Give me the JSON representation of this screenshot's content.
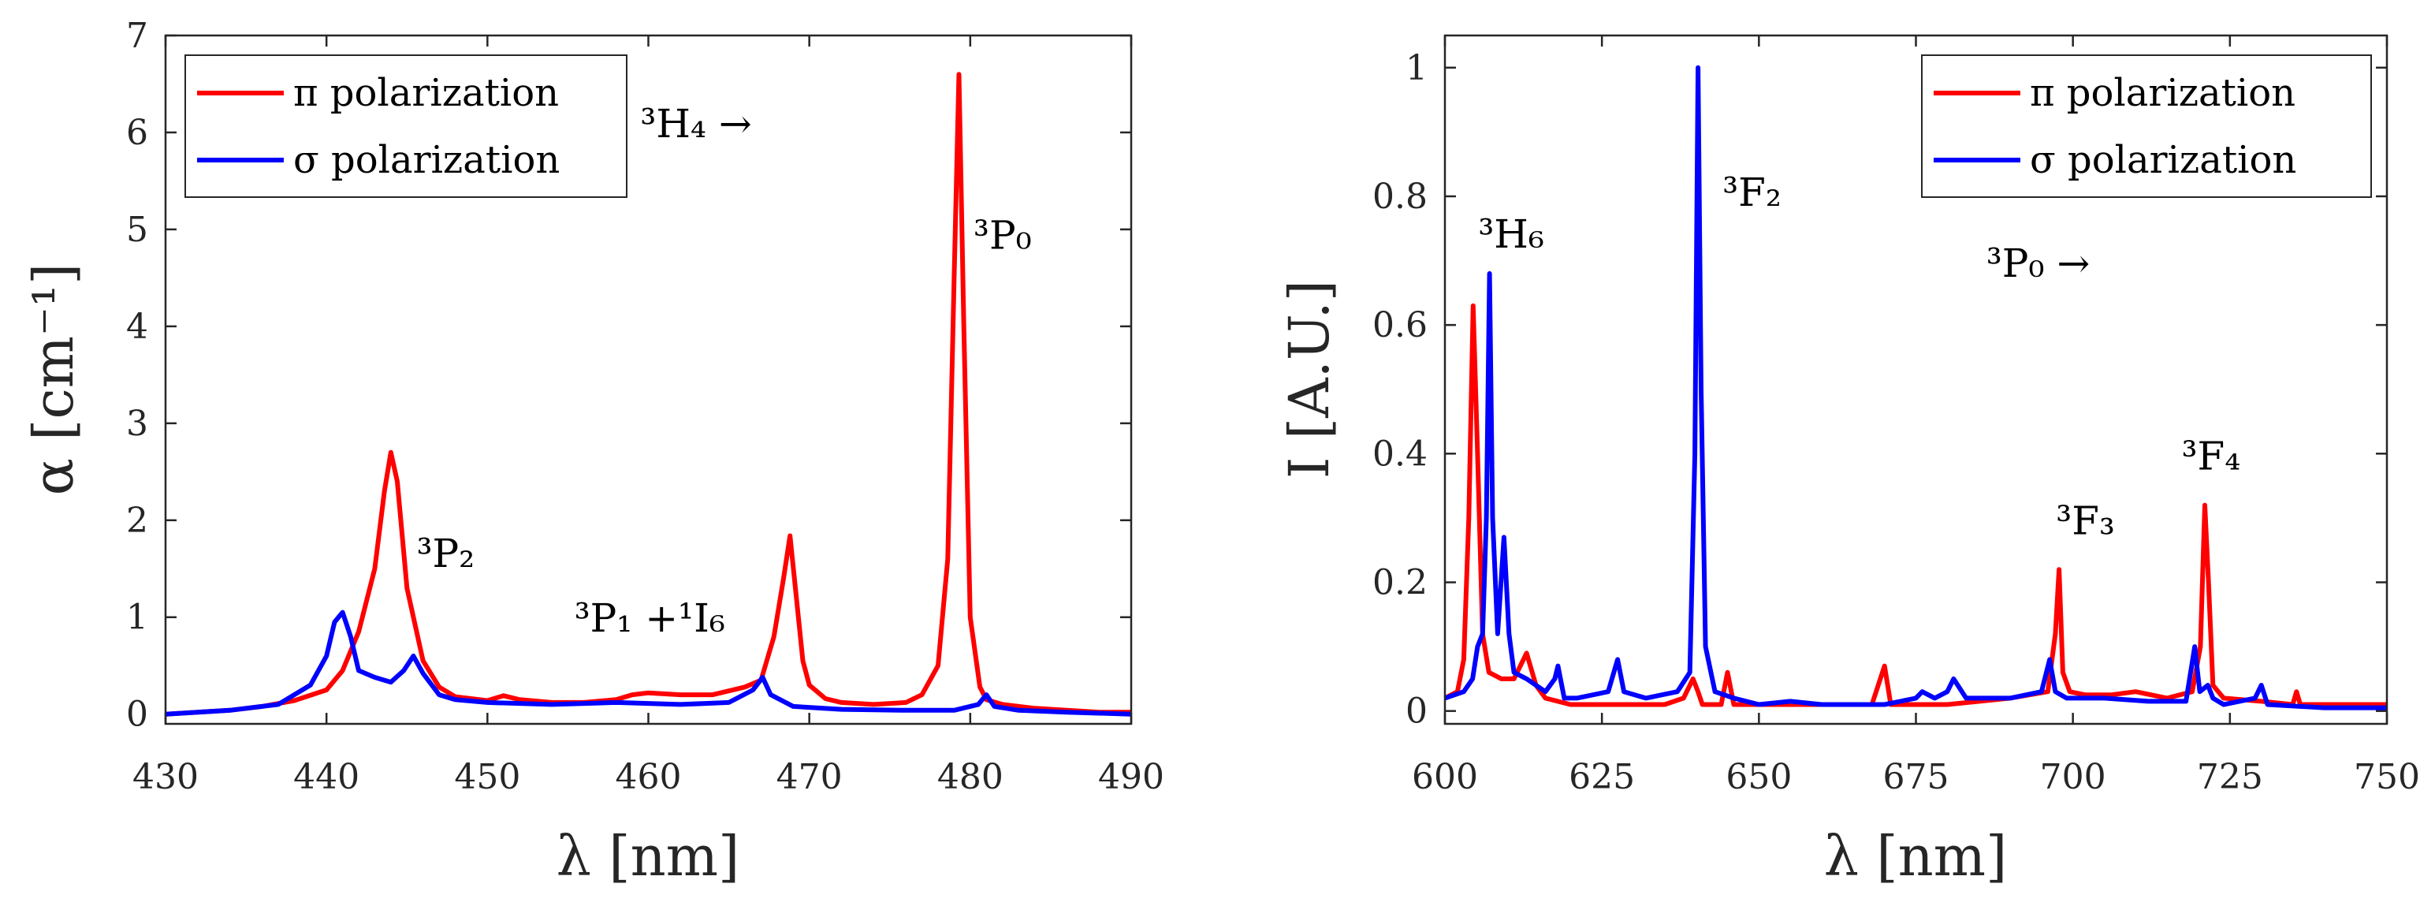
{
  "chart_data": [
    {
      "type": "line",
      "panel": "left",
      "xlabel": "λ [nm]",
      "ylabel": "α [cm⁻¹]",
      "xlim": [
        430,
        490
      ],
      "ylim": [
        -0.1,
        7
      ],
      "xticks": [
        430,
        440,
        450,
        460,
        470,
        480,
        490
      ],
      "yticks": [
        0,
        1,
        2,
        3,
        4,
        5,
        6,
        7
      ],
      "legend": {
        "position": "top-left",
        "entries": [
          "π polarization",
          "σ polarization"
        ]
      },
      "annotations": [
        {
          "text": "³H₄ →",
          "x": 459.5,
          "y": 5.95
        },
        {
          "text": "³P₀",
          "x": 480.2,
          "y": 4.8
        },
        {
          "text": "³P₂",
          "x": 445.6,
          "y": 1.52
        },
        {
          "text": "³P₁ +¹I₆",
          "x": 455.4,
          "y": 0.85
        }
      ],
      "series": [
        {
          "name": "π polarization",
          "color": "#ff0000",
          "x": [
            430,
            432,
            434,
            436,
            438,
            440,
            441,
            442,
            443,
            443.6,
            444,
            444.4,
            445,
            446,
            447,
            448,
            450,
            451,
            452,
            454,
            456,
            458,
            459,
            460,
            462,
            464,
            466,
            467,
            467.8,
            468.4,
            468.8,
            469.2,
            469.6,
            470,
            471,
            472,
            474,
            476,
            477,
            478,
            478.6,
            479.0,
            479.3,
            479.6,
            480,
            480.6,
            481,
            482,
            484,
            486,
            488,
            490
          ],
          "values": [
            0.0,
            0.02,
            0.04,
            0.08,
            0.14,
            0.25,
            0.45,
            0.85,
            1.5,
            2.3,
            2.7,
            2.4,
            1.3,
            0.55,
            0.28,
            0.18,
            0.14,
            0.19,
            0.15,
            0.12,
            0.12,
            0.15,
            0.2,
            0.22,
            0.2,
            0.2,
            0.28,
            0.35,
            0.8,
            1.4,
            1.84,
            1.2,
            0.55,
            0.3,
            0.16,
            0.12,
            0.1,
            0.12,
            0.2,
            0.5,
            1.6,
            4.5,
            6.6,
            4.0,
            1.0,
            0.28,
            0.15,
            0.1,
            0.06,
            0.04,
            0.02,
            0.02
          ]
        },
        {
          "name": "σ polarization",
          "color": "#0000ff",
          "x": [
            430,
            434,
            437,
            439,
            440,
            440.5,
            441,
            441.5,
            442,
            443,
            444,
            444.8,
            445.4,
            446,
            447,
            448,
            450,
            454,
            458,
            462,
            465,
            466.5,
            467.1,
            467.6,
            469,
            472,
            476,
            479,
            480.5,
            481,
            481.5,
            483,
            486,
            490
          ],
          "values": [
            0.0,
            0.04,
            0.1,
            0.3,
            0.6,
            0.95,
            1.05,
            0.8,
            0.45,
            0.38,
            0.33,
            0.45,
            0.6,
            0.42,
            0.2,
            0.15,
            0.12,
            0.1,
            0.12,
            0.1,
            0.12,
            0.25,
            0.38,
            0.2,
            0.08,
            0.05,
            0.04,
            0.04,
            0.1,
            0.2,
            0.08,
            0.04,
            0.02,
            0.0
          ]
        }
      ]
    },
    {
      "type": "line",
      "panel": "right",
      "xlabel": "λ [nm]",
      "ylabel": "I [A.U.]",
      "xlim": [
        600,
        750
      ],
      "ylim": [
        -0.02,
        1.05
      ],
      "xticks": [
        600,
        625,
        650,
        675,
        700,
        725,
        750
      ],
      "yticks": [
        0,
        0.2,
        0.4,
        0.6,
        0.8,
        1
      ],
      "legend": {
        "position": "top-right",
        "entries": [
          "π polarization",
          "σ polarization"
        ]
      },
      "annotations": [
        {
          "text": "³H₆",
          "x": 605.3,
          "y": 0.72
        },
        {
          "text": "³F₂",
          "x": 644.2,
          "y": 0.785
        },
        {
          "text": "³P₀ →",
          "x": 686.2,
          "y": 0.675
        },
        {
          "text": "³F₃",
          "x": 697.3,
          "y": 0.275
        },
        {
          "text": "³F₄",
          "x": 717.3,
          "y": 0.375
        }
      ],
      "series": [
        {
          "name": "π polarization",
          "color": "#ff0000",
          "x": [
            600,
            602,
            603,
            603.8,
            604.5,
            605.2,
            606,
            607,
            609,
            611,
            613,
            614.5,
            616,
            620,
            625,
            630,
            635,
            638,
            639.5,
            640.3,
            641,
            642,
            644,
            645,
            646,
            650,
            660,
            668,
            670,
            671,
            672,
            680,
            690,
            696,
            697.2,
            697.8,
            698.4,
            699.5,
            702,
            706,
            710,
            715,
            719,
            720.3,
            721,
            721.6,
            722.3,
            724,
            730,
            735,
            735.6,
            736.2,
            740,
            750
          ],
          "values": [
            0.02,
            0.03,
            0.08,
            0.3,
            0.63,
            0.4,
            0.12,
            0.06,
            0.05,
            0.05,
            0.09,
            0.04,
            0.02,
            0.01,
            0.01,
            0.01,
            0.01,
            0.02,
            0.05,
            0.03,
            0.01,
            0.01,
            0.01,
            0.06,
            0.01,
            0.01,
            0.01,
            0.01,
            0.07,
            0.01,
            0.01,
            0.01,
            0.02,
            0.03,
            0.12,
            0.22,
            0.06,
            0.03,
            0.025,
            0.025,
            0.03,
            0.02,
            0.03,
            0.1,
            0.32,
            0.2,
            0.04,
            0.02,
            0.015,
            0.01,
            0.03,
            0.01,
            0.01,
            0.01
          ]
        },
        {
          "name": "σ polarization",
          "color": "#0000ff",
          "x": [
            600,
            603,
            604.4,
            605.2,
            606,
            606.6,
            607.1,
            607.6,
            608.4,
            609.4,
            610.2,
            611,
            613,
            616,
            617.5,
            618,
            619,
            621,
            626,
            627.5,
            628.5,
            632,
            637,
            639,
            639.8,
            640.3,
            640.8,
            641.5,
            643,
            646,
            650,
            655,
            660,
            670,
            675,
            676,
            678,
            680,
            681,
            683,
            690,
            695,
            696.3,
            697.2,
            699,
            705,
            712,
            718,
            719.4,
            720.2,
            721.5,
            722.3,
            724,
            729,
            730,
            731,
            740,
            750
          ],
          "values": [
            0.02,
            0.03,
            0.05,
            0.1,
            0.12,
            0.3,
            0.68,
            0.3,
            0.12,
            0.27,
            0.12,
            0.06,
            0.05,
            0.03,
            0.05,
            0.07,
            0.02,
            0.02,
            0.03,
            0.08,
            0.03,
            0.02,
            0.03,
            0.06,
            0.4,
            1.0,
            0.5,
            0.1,
            0.03,
            0.02,
            0.01,
            0.015,
            0.01,
            0.01,
            0.02,
            0.03,
            0.02,
            0.03,
            0.05,
            0.02,
            0.02,
            0.03,
            0.08,
            0.03,
            0.02,
            0.02,
            0.015,
            0.015,
            0.1,
            0.03,
            0.04,
            0.02,
            0.01,
            0.02,
            0.04,
            0.01,
            0.005,
            0.005
          ]
        }
      ]
    }
  ]
}
